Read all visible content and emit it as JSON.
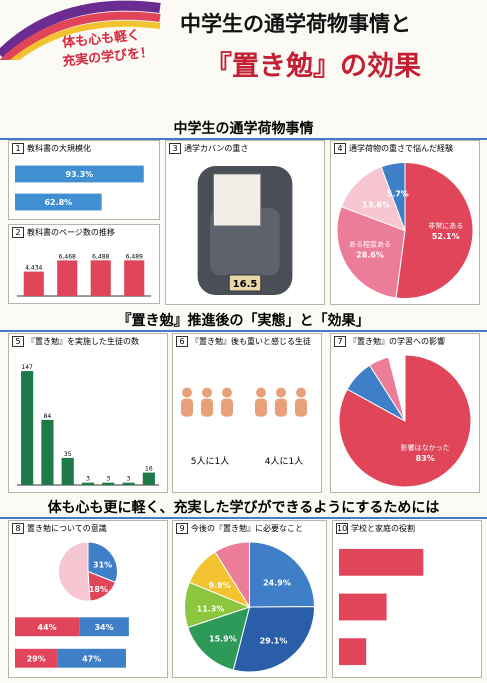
{
  "header": {
    "slogan_1": "体も心も軽く",
    "slogan_2": "充実の学びを！",
    "title_1": "中学生の通学荷物事情と",
    "title_2": "『置き勉』の効果"
  },
  "sections": [
    {
      "heading": "中学生の通学荷物事情",
      "panels": [
        {
          "number": "1",
          "title": "教科書の大規模化",
          "charts": [
            {
              "type": "hbar",
              "xlim": [
                0,
                100
              ],
              "series": [
                {
                  "color": "#3f8fd2",
                  "values": [
                    93.3,
                    62.8
                  ],
                  "value_labels": [
                    "93.3%",
                    "62.8%"
                  ]
                }
              ]
            }
          ]
        },
        {
          "number": "2",
          "title": "教科書のページ数の推移",
          "charts": [
            {
              "type": "bar",
              "ylim": [
                0,
                8000
              ],
              "color": "#e0455a",
              "values": [
                4434,
                6468,
                6488,
                6489
              ],
              "value_labels": [
                "4,434",
                "6,468",
                "6,488",
                "6,489"
              ]
            }
          ]
        },
        {
          "number": "3",
          "title": "通学カバンの重さ",
          "charts": [
            {
              "type": "bag",
              "label": "16.5"
            }
          ]
        },
        {
          "number": "4",
          "title": "通学荷物の重さで悩んだ経験",
          "charts": [
            {
              "type": "pie",
              "values": [
                52.1,
                28.6,
                13.6,
                5.7
              ],
              "value_labels": [
                "52.1%",
                "28.6%",
                "13.6%",
                "5.7%"
              ],
              "labels": [
                "非常にある",
                "ある程度ある",
                null,
                null
              ],
              "colors": [
                "#e0455a",
                "#ec7d98",
                "#f6c6d2",
                "#3f7fc8"
              ]
            }
          ]
        }
      ]
    },
    {
      "heading": "『置き勉』推進後の「実態」と「効果」",
      "panels": [
        {
          "number": "5",
          "title": "『置き勉』を実施した生徒の数",
          "charts": [
            {
              "type": "bar",
              "ylim": [
                0,
                160
              ],
              "color": "#1f7a4a",
              "values": [
                147,
                84,
                35,
                3,
                3,
                3,
                16
              ]
            }
          ]
        },
        {
          "number": "6",
          "title": "『置き勉』後も重いと感じる生徒",
          "charts": [
            {
              "type": "people",
              "labels": [
                "5人に1人",
                "4人に1人"
              ]
            }
          ]
        },
        {
          "number": "7",
          "title": "『置き勉』の学習への影響",
          "charts": [
            {
              "type": "pie",
              "values": [
                83,
                8,
                5,
                4
              ],
              "value_labels": [
                "83%",
                null,
                null,
                null
              ],
              "labels": [
                "影響はなかった",
                null,
                null,
                null
              ],
              "colors": [
                "#e0455a",
                "#3f7fc8",
                "#ec7d98",
                "#ffffff"
              ]
            }
          ]
        }
      ]
    },
    {
      "heading": "体も心も更に軽く、充実した学びができるようにするためには",
      "panels": [
        {
          "number": "8",
          "title": "置き勉についての意識",
          "charts": [
            {
              "type": "pie",
              "values": [
                31,
                18,
                51
              ],
              "value_labels": [
                "31%",
                "18%",
                null
              ],
              "labels": [
                null,
                null,
                null
              ],
              "colors": [
                "#3f7fc8",
                "#e0455a",
                "#f6c6d2"
              ]
            },
            {
              "type": "hbar",
              "xlim": [
                0,
                100
              ],
              "series": [
                {
                  "color": "#e0455a",
                  "values": [
                    44,
                    29
                  ],
                  "value_labels": [
                    "44%",
                    "29%"
                  ]
                },
                {
                  "color": "#3f7fc8",
                  "values": [
                    34,
                    47
                  ],
                  "value_labels": [
                    "34%",
                    "47%"
                  ]
                }
              ]
            }
          ]
        },
        {
          "number": "9",
          "title": "今後の『置き勉』に必要なこと",
          "charts": [
            {
              "type": "pie",
              "values": [
                24.9,
                29.1,
                15.9,
                11.3,
                9.9,
                8.9
              ],
              "value_labels": [
                "24.9%",
                "29.1%",
                "15.9%",
                "11.3%",
                "9.9%",
                null
              ],
              "labels": [
                null,
                null,
                null,
                null,
                null,
                null
              ],
              "colors": [
                "#3f7fc8",
                "#2a5ea8",
                "#2e9a5a",
                "#8cc63f",
                "#f2c230",
                "#ec7d98"
              ]
            }
          ]
        },
        {
          "number": "10",
          "title": "学校と家庭の役割",
          "charts": [
            {
              "type": "hbar",
              "xlim": [
                0,
                100
              ],
              "series": [
                {
                  "color": "#e0455a",
                  "values": [
                    62,
                    35,
                    20
                  ]
                }
              ]
            }
          ]
        }
      ]
    }
  ]
}
